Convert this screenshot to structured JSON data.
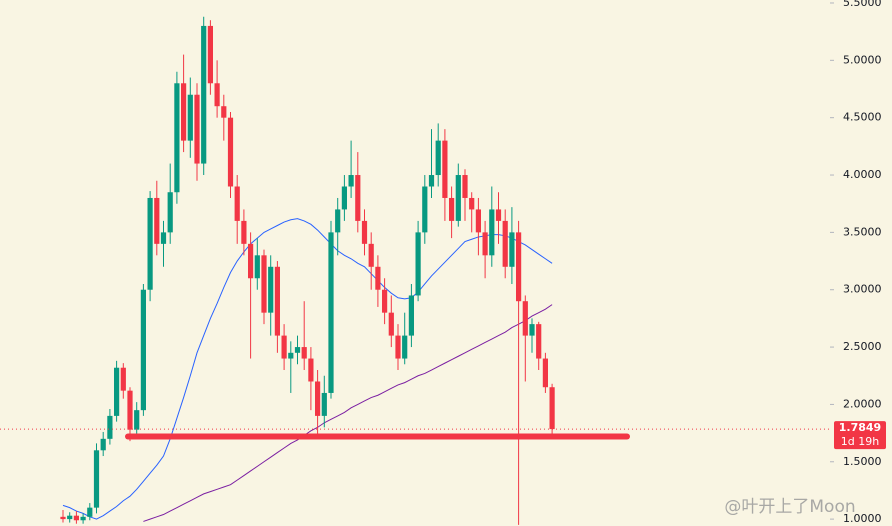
{
  "chart_data": {
    "type": "candlestick",
    "ylim": [
      0.94,
      5.526
    ],
    "yticks": [
      {
        "value": 1.0,
        "label": "1.0000"
      },
      {
        "value": 1.5,
        "label": "1.5000"
      },
      {
        "value": 2.0,
        "label": "2.0000"
      },
      {
        "value": 2.5,
        "label": "2.5000"
      },
      {
        "value": 3.0,
        "label": "3.0000"
      },
      {
        "value": 3.5,
        "label": "3.5000"
      },
      {
        "value": 4.0,
        "label": "4.0000"
      },
      {
        "value": 4.5,
        "label": "4.5000"
      },
      {
        "value": 5.0,
        "label": "5.0000"
      },
      {
        "value": 5.5,
        "label": "5.5000"
      }
    ],
    "up_color": "#089981",
    "down_color": "#f23645",
    "open": [
      1.02,
      1.0,
      1.03,
      0.99,
      1.02,
      1.1,
      1.6,
      1.7,
      1.9,
      2.32,
      2.12,
      1.78,
      1.95,
      3.0,
      3.8,
      3.4,
      3.5,
      3.85,
      4.8,
      4.3,
      4.7,
      4.1,
      5.3,
      4.8,
      4.6,
      4.5,
      3.9,
      3.6,
      3.4,
      3.1,
      3.3,
      2.8,
      3.2,
      2.6,
      2.4,
      2.45,
      2.5,
      2.4,
      2.2,
      1.9,
      2.1,
      3.5,
      3.7,
      3.9,
      4.0,
      3.6,
      3.4,
      3.2,
      3.0,
      2.8,
      2.6,
      2.4,
      2.6,
      2.95,
      3.5,
      3.9,
      4.0,
      4.3,
      3.8,
      3.6,
      4.0,
      3.8,
      3.7,
      3.5,
      3.3,
      3.7,
      3.6,
      3.2,
      3.5,
      2.9,
      2.6,
      2.7,
      2.4,
      2.15
    ],
    "high": [
      1.08,
      1.06,
      1.07,
      1.05,
      1.14,
      1.66,
      1.76,
      1.96,
      2.38,
      2.36,
      2.15,
      2.02,
      3.05,
      3.86,
      3.95,
      3.6,
      4.1,
      4.9,
      5.05,
      4.85,
      4.8,
      5.38,
      5.35,
      5.0,
      4.7,
      4.55,
      4.0,
      3.7,
      3.5,
      3.45,
      3.35,
      3.3,
      3.25,
      2.7,
      2.55,
      2.6,
      2.9,
      2.5,
      2.3,
      2.25,
      3.6,
      3.8,
      4.0,
      4.3,
      4.2,
      3.7,
      3.5,
      3.3,
      3.1,
      2.95,
      2.7,
      2.8,
      3.05,
      3.6,
      4.0,
      4.4,
      4.45,
      4.4,
      3.9,
      4.1,
      4.05,
      3.85,
      3.8,
      3.6,
      3.9,
      3.85,
      3.7,
      3.72,
      3.6,
      2.95,
      2.75,
      2.72,
      2.45,
      2.18
    ],
    "low": [
      0.97,
      0.97,
      0.96,
      0.96,
      0.99,
      1.05,
      1.55,
      1.65,
      1.85,
      2.05,
      1.68,
      1.72,
      1.9,
      2.9,
      3.3,
      3.2,
      3.4,
      3.75,
      4.2,
      4.15,
      3.95,
      4.0,
      4.7,
      4.5,
      4.3,
      3.8,
      3.4,
      3.3,
      2.4,
      3.0,
      2.7,
      2.6,
      2.45,
      2.3,
      2.1,
      2.35,
      2.3,
      1.95,
      1.72,
      1.8,
      2.05,
      3.3,
      3.6,
      3.8,
      3.5,
      3.3,
      3.0,
      2.85,
      2.7,
      2.5,
      2.3,
      2.35,
      2.5,
      2.9,
      3.4,
      3.8,
      3.9,
      3.6,
      3.45,
      3.55,
      3.6,
      3.5,
      3.3,
      3.1,
      3.2,
      3.4,
      3.1,
      3.05,
      0.95,
      2.2,
      2.45,
      2.3,
      2.1,
      1.72
    ],
    "close": [
      1.0,
      1.03,
      0.99,
      1.02,
      1.1,
      1.6,
      1.7,
      1.9,
      2.32,
      2.12,
      1.78,
      1.95,
      3.0,
      3.8,
      3.4,
      3.5,
      3.85,
      4.8,
      4.3,
      4.7,
      4.1,
      5.3,
      4.8,
      4.6,
      4.5,
      3.9,
      3.6,
      3.4,
      3.1,
      3.3,
      2.8,
      3.2,
      2.6,
      2.4,
      2.45,
      2.5,
      2.4,
      2.2,
      1.9,
      2.1,
      3.5,
      3.7,
      3.9,
      4.0,
      3.6,
      3.4,
      3.2,
      3.0,
      2.8,
      2.6,
      2.4,
      2.6,
      2.95,
      3.5,
      3.9,
      4.0,
      4.3,
      3.8,
      3.6,
      4.0,
      3.8,
      3.7,
      3.5,
      3.3,
      3.7,
      3.6,
      3.2,
      3.5,
      2.9,
      2.6,
      2.7,
      2.4,
      2.15,
      1.7849
    ],
    "series": [
      {
        "color": "#2962ff",
        "values": [
          1.12,
          1.1,
          1.07,
          1.05,
          1.02,
          1.0,
          1.03,
          1.07,
          1.11,
          1.16,
          1.2,
          1.26,
          1.33,
          1.4,
          1.47,
          1.55,
          1.7,
          1.88,
          2.06,
          2.25,
          2.45,
          2.6,
          2.75,
          2.88,
          3.02,
          3.15,
          3.25,
          3.33,
          3.4,
          3.45,
          3.5,
          3.53,
          3.56,
          3.59,
          3.61,
          3.62,
          3.6,
          3.57,
          3.52,
          3.46,
          3.4,
          3.34,
          3.3,
          3.27,
          3.23,
          3.2,
          3.14,
          3.08,
          3.02,
          2.97,
          2.93,
          2.92,
          2.93,
          2.98,
          3.05,
          3.12,
          3.18,
          3.24,
          3.3,
          3.36,
          3.42,
          3.44,
          3.46,
          3.47,
          3.48,
          3.48,
          3.47,
          3.45,
          3.42,
          3.39,
          3.35,
          3.31,
          3.27,
          3.23
        ]
      },
      {
        "color": "#7b1fa2",
        "values": [
          null,
          null,
          null,
          null,
          null,
          null,
          null,
          null,
          null,
          null,
          null,
          null,
          0.98,
          1.0,
          1.02,
          1.04,
          1.07,
          1.1,
          1.13,
          1.16,
          1.19,
          1.22,
          1.24,
          1.26,
          1.28,
          1.3,
          1.34,
          1.38,
          1.42,
          1.46,
          1.5,
          1.54,
          1.58,
          1.62,
          1.66,
          1.69,
          1.73,
          1.77,
          1.8,
          1.84,
          1.87,
          1.9,
          1.93,
          1.97,
          2.0,
          2.03,
          2.06,
          2.08,
          2.11,
          2.14,
          2.17,
          2.19,
          2.22,
          2.25,
          2.27,
          2.3,
          2.33,
          2.36,
          2.39,
          2.42,
          2.45,
          2.48,
          2.51,
          2.54,
          2.57,
          2.6,
          2.63,
          2.67,
          2.7,
          2.73,
          2.77,
          2.8,
          2.83,
          2.87
        ]
      }
    ],
    "support_level": 1.72,
    "support_color": "#f23645",
    "last_price": {
      "value": 1.7849,
      "label": "1.7849"
    },
    "countdown": "1d 19h",
    "watermark": "@叶开上了Moon"
  }
}
